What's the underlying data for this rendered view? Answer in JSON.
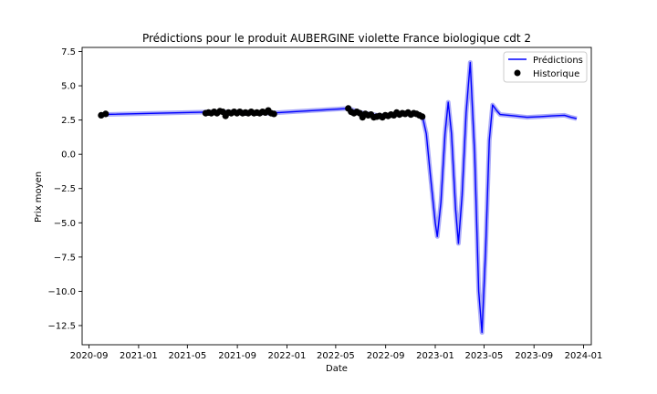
{
  "chart_data": {
    "type": "line",
    "title": "Prédictions pour le produit AUBERGINE violette France biologique cdt 2",
    "xlabel": "Date",
    "ylabel": "Prix moyen",
    "xlim": [
      "2020-08-15",
      "2024-01-20"
    ],
    "ylim": [
      -13.9,
      7.8
    ],
    "x_ticks": [
      "2020-09",
      "2021-01",
      "2021-05",
      "2021-09",
      "2022-01",
      "2022-05",
      "2022-09",
      "2023-01",
      "2023-05",
      "2023-09",
      "2024-01"
    ],
    "x_tick_labels": [
      "2020-09",
      "2021-01",
      "2021-05",
      "2021-09",
      "2022-01",
      "2022-05",
      "2022-09",
      "2023-01",
      "2023-05",
      "2023-09",
      "2024-01"
    ],
    "y_ticks": [
      7.5,
      5.0,
      2.5,
      0.0,
      -2.5,
      -5.0,
      -7.5,
      -10.0,
      -12.5
    ],
    "y_tick_labels": [
      "7.5",
      "5.0",
      "2.5",
      "0.0",
      "−2.5",
      "−5.0",
      "−7.5",
      "−10.0",
      "−12.5"
    ],
    "legend": {
      "position": "top-right",
      "entries": [
        {
          "label": "Prédictions",
          "marker": "line",
          "color": "#0000ff"
        },
        {
          "label": "Historique",
          "marker": "dot",
          "color": "#000000"
        }
      ]
    },
    "grid": false,
    "series": [
      {
        "name": "Prédictions",
        "kind": "line",
        "color": "#0000ff",
        "band_color": "#8f8ff5",
        "points": [
          [
            "2020-10-01",
            2.9
          ],
          [
            "2021-06-15",
            3.08
          ],
          [
            "2021-09-01",
            3.08
          ],
          [
            "2021-11-20",
            3.0
          ],
          [
            "2022-01-01",
            3.08
          ],
          [
            "2022-06-01",
            3.35
          ],
          [
            "2022-07-01",
            3.05
          ],
          [
            "2022-08-20",
            2.8
          ],
          [
            "2022-10-01",
            2.95
          ],
          [
            "2022-11-15",
            2.95
          ],
          [
            "2022-12-01",
            2.7
          ],
          [
            "2022-12-10",
            1.5
          ],
          [
            "2022-12-20",
            -1.5
          ],
          [
            "2023-01-01",
            -5.0
          ],
          [
            "2023-01-06",
            -6.0
          ],
          [
            "2023-01-15",
            -3.5
          ],
          [
            "2023-01-25",
            1.5
          ],
          [
            "2023-02-02",
            3.8
          ],
          [
            "2023-02-10",
            1.5
          ],
          [
            "2023-02-20",
            -4.0
          ],
          [
            "2023-02-27",
            -6.5
          ],
          [
            "2023-03-08",
            -3.0
          ],
          [
            "2023-03-18",
            3.0
          ],
          [
            "2023-03-28",
            6.7
          ],
          [
            "2023-04-08",
            0.0
          ],
          [
            "2023-04-18",
            -10.0
          ],
          [
            "2023-04-26",
            -13.0
          ],
          [
            "2023-05-05",
            -7.0
          ],
          [
            "2023-05-14",
            1.0
          ],
          [
            "2023-05-22",
            3.6
          ],
          [
            "2023-06-01",
            3.2
          ],
          [
            "2023-06-10",
            2.9
          ],
          [
            "2023-07-15",
            2.8
          ],
          [
            "2023-08-15",
            2.7
          ],
          [
            "2023-09-15",
            2.75
          ],
          [
            "2023-10-15",
            2.8
          ],
          [
            "2023-11-15",
            2.85
          ],
          [
            "2023-12-01",
            2.7
          ],
          [
            "2023-12-15",
            2.6
          ]
        ]
      },
      {
        "name": "Historique",
        "kind": "scatter",
        "color": "#000000",
        "points": [
          [
            "2020-10-01",
            2.85
          ],
          [
            "2020-10-12",
            2.95
          ],
          [
            "2021-06-15",
            3.0
          ],
          [
            "2021-06-22",
            3.05
          ],
          [
            "2021-06-29",
            3.0
          ],
          [
            "2021-07-06",
            3.1
          ],
          [
            "2021-07-13",
            3.0
          ],
          [
            "2021-07-20",
            3.15
          ],
          [
            "2021-07-27",
            3.1
          ],
          [
            "2021-08-03",
            2.8
          ],
          [
            "2021-08-10",
            3.05
          ],
          [
            "2021-08-17",
            3.0
          ],
          [
            "2021-08-24",
            3.1
          ],
          [
            "2021-08-31",
            3.0
          ],
          [
            "2021-09-07",
            3.1
          ],
          [
            "2021-09-14",
            3.0
          ],
          [
            "2021-09-21",
            3.05
          ],
          [
            "2021-09-28",
            3.0
          ],
          [
            "2021-10-05",
            3.1
          ],
          [
            "2021-10-12",
            3.0
          ],
          [
            "2021-10-19",
            3.05
          ],
          [
            "2021-10-26",
            3.0
          ],
          [
            "2021-11-02",
            3.1
          ],
          [
            "2021-11-09",
            3.05
          ],
          [
            "2021-11-16",
            3.2
          ],
          [
            "2021-11-23",
            3.0
          ],
          [
            "2021-11-30",
            2.95
          ],
          [
            "2022-06-01",
            3.35
          ],
          [
            "2022-06-08",
            3.1
          ],
          [
            "2022-06-15",
            3.0
          ],
          [
            "2022-06-22",
            3.1
          ],
          [
            "2022-06-29",
            3.0
          ],
          [
            "2022-07-06",
            2.7
          ],
          [
            "2022-07-13",
            2.95
          ],
          [
            "2022-07-20",
            2.85
          ],
          [
            "2022-07-27",
            2.9
          ],
          [
            "2022-08-03",
            2.7
          ],
          [
            "2022-08-10",
            2.75
          ],
          [
            "2022-08-17",
            2.8
          ],
          [
            "2022-08-24",
            2.7
          ],
          [
            "2022-08-31",
            2.85
          ],
          [
            "2022-09-07",
            2.8
          ],
          [
            "2022-09-14",
            2.9
          ],
          [
            "2022-09-21",
            2.85
          ],
          [
            "2022-09-28",
            3.05
          ],
          [
            "2022-10-05",
            2.9
          ],
          [
            "2022-10-12",
            3.0
          ],
          [
            "2022-10-19",
            2.95
          ],
          [
            "2022-10-26",
            3.05
          ],
          [
            "2022-11-02",
            2.9
          ],
          [
            "2022-11-09",
            3.0
          ],
          [
            "2022-11-16",
            2.95
          ],
          [
            "2022-11-23",
            2.85
          ],
          [
            "2022-11-30",
            2.75
          ]
        ]
      }
    ]
  }
}
